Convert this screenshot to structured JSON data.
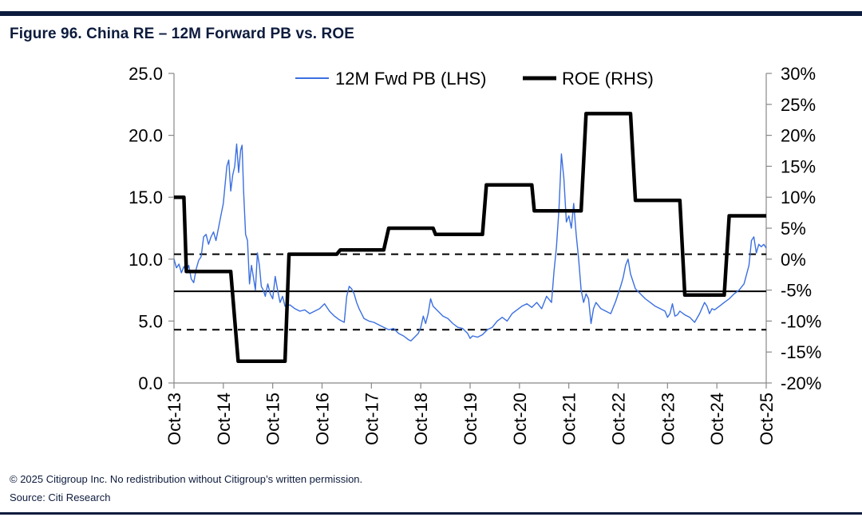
{
  "title": "Figure 96. China RE – 12M Forward PB vs. ROE",
  "footer": {
    "copyright": "© 2025 Citigroup Inc. No redistribution without Citigroup’s written permission.",
    "source": "Source: Citi Research"
  },
  "colors": {
    "navy": "#0d1b3d",
    "pb_line": "#3b6fe0",
    "roe_line": "#000000"
  },
  "chart_data": {
    "type": "line",
    "x_labels": [
      "Oct-13",
      "Oct-14",
      "Oct-15",
      "Oct-16",
      "Oct-17",
      "Oct-18",
      "Oct-19",
      "Oct-20",
      "Oct-21",
      "Oct-22",
      "Oct-23",
      "Oct-24",
      "Oct-25"
    ],
    "x_range": [
      2013.75,
      2025.75
    ],
    "left_axis": {
      "ticks": [
        "0.0",
        "5.0",
        "10.0",
        "15.0",
        "20.0",
        "25.0"
      ],
      "ylim": [
        0,
        25
      ]
    },
    "right_axis": {
      "ticks": [
        "-20%",
        "-15%",
        "-10%",
        "-5%",
        "0%",
        "5%",
        "10%",
        "15%",
        "20%",
        "25%",
        "30%"
      ],
      "ylim": [
        -20,
        30
      ]
    },
    "legend": {
      "position": "top",
      "pb_label": "12M Fwd PB  (LHS)",
      "roe_label": "ROE  (RHS)"
    },
    "series": [
      {
        "name": "12M Fwd PB  (LHS)",
        "axis": "left",
        "color": "#3b6fe0",
        "points": [
          [
            2013.75,
            10.0
          ],
          [
            2013.8,
            9.3
          ],
          [
            2013.85,
            9.6
          ],
          [
            2013.9,
            8.9
          ],
          [
            2013.95,
            9.4
          ],
          [
            2014.0,
            9.0
          ],
          [
            2014.05,
            9.5
          ],
          [
            2014.1,
            8.4
          ],
          [
            2014.15,
            8.1
          ],
          [
            2014.2,
            9.2
          ],
          [
            2014.25,
            9.9
          ],
          [
            2014.3,
            10.2
          ],
          [
            2014.35,
            11.8
          ],
          [
            2014.4,
            12.0
          ],
          [
            2014.45,
            11.2
          ],
          [
            2014.5,
            11.8
          ],
          [
            2014.55,
            12.2
          ],
          [
            2014.6,
            11.5
          ],
          [
            2014.65,
            12.5
          ],
          [
            2014.7,
            13.5
          ],
          [
            2014.75,
            14.5
          ],
          [
            2014.78,
            15.8
          ],
          [
            2014.82,
            17.5
          ],
          [
            2014.86,
            18.0
          ],
          [
            2014.9,
            15.5
          ],
          [
            2014.94,
            16.8
          ],
          [
            2014.98,
            17.5
          ],
          [
            2015.02,
            19.3
          ],
          [
            2015.06,
            17.0
          ],
          [
            2015.1,
            18.8
          ],
          [
            2015.13,
            19.2
          ],
          [
            2015.16,
            15.5
          ],
          [
            2015.2,
            12.0
          ],
          [
            2015.24,
            11.5
          ],
          [
            2015.28,
            8.0
          ],
          [
            2015.32,
            9.5
          ],
          [
            2015.36,
            8.5
          ],
          [
            2015.4,
            7.5
          ],
          [
            2015.44,
            10.5
          ],
          [
            2015.48,
            9.5
          ],
          [
            2015.52,
            7.8
          ],
          [
            2015.56,
            7.5
          ],
          [
            2015.6,
            7.0
          ],
          [
            2015.65,
            8.0
          ],
          [
            2015.7,
            7.2
          ],
          [
            2015.75,
            6.8
          ],
          [
            2015.8,
            8.6
          ],
          [
            2015.85,
            7.5
          ],
          [
            2015.9,
            6.5
          ],
          [
            2015.95,
            7.0
          ],
          [
            2016.0,
            6.2
          ],
          [
            2016.1,
            6.3
          ],
          [
            2016.2,
            6.0
          ],
          [
            2016.3,
            5.8
          ],
          [
            2016.4,
            5.9
          ],
          [
            2016.5,
            5.6
          ],
          [
            2016.6,
            5.8
          ],
          [
            2016.7,
            6.0
          ],
          [
            2016.8,
            6.4
          ],
          [
            2016.9,
            5.8
          ],
          [
            2017.0,
            5.4
          ],
          [
            2017.1,
            5.1
          ],
          [
            2017.2,
            4.9
          ],
          [
            2017.25,
            7.0
          ],
          [
            2017.3,
            7.8
          ],
          [
            2017.35,
            7.6
          ],
          [
            2017.4,
            7.2
          ],
          [
            2017.45,
            6.5
          ],
          [
            2017.5,
            6.0
          ],
          [
            2017.55,
            5.6
          ],
          [
            2017.6,
            5.2
          ],
          [
            2017.7,
            5.0
          ],
          [
            2017.8,
            4.9
          ],
          [
            2017.9,
            4.7
          ],
          [
            2018.0,
            4.5
          ],
          [
            2018.1,
            4.3
          ],
          [
            2018.2,
            4.4
          ],
          [
            2018.3,
            4.0
          ],
          [
            2018.4,
            3.8
          ],
          [
            2018.5,
            3.5
          ],
          [
            2018.55,
            3.4
          ],
          [
            2018.6,
            3.6
          ],
          [
            2018.7,
            4.0
          ],
          [
            2018.75,
            4.5
          ],
          [
            2018.8,
            5.4
          ],
          [
            2018.85,
            4.8
          ],
          [
            2018.9,
            5.6
          ],
          [
            2018.95,
            6.8
          ],
          [
            2019.0,
            6.2
          ],
          [
            2019.1,
            5.8
          ],
          [
            2019.2,
            5.4
          ],
          [
            2019.3,
            5.2
          ],
          [
            2019.4,
            4.8
          ],
          [
            2019.5,
            4.5
          ],
          [
            2019.6,
            4.4
          ],
          [
            2019.7,
            4.0
          ],
          [
            2019.75,
            3.6
          ],
          [
            2019.8,
            3.8
          ],
          [
            2019.9,
            3.7
          ],
          [
            2020.0,
            3.9
          ],
          [
            2020.1,
            4.3
          ],
          [
            2020.2,
            4.5
          ],
          [
            2020.3,
            5.0
          ],
          [
            2020.4,
            5.3
          ],
          [
            2020.5,
            5.0
          ],
          [
            2020.6,
            5.6
          ],
          [
            2020.7,
            5.9
          ],
          [
            2020.8,
            6.2
          ],
          [
            2020.9,
            6.4
          ],
          [
            2021.0,
            6.1
          ],
          [
            2021.1,
            6.5
          ],
          [
            2021.2,
            6.0
          ],
          [
            2021.3,
            7.0
          ],
          [
            2021.4,
            6.5
          ],
          [
            2021.45,
            9.0
          ],
          [
            2021.5,
            11.0
          ],
          [
            2021.55,
            14.0
          ],
          [
            2021.6,
            18.5
          ],
          [
            2021.65,
            16.5
          ],
          [
            2021.7,
            13.0
          ],
          [
            2021.75,
            13.5
          ],
          [
            2021.8,
            12.5
          ],
          [
            2021.85,
            14.5
          ],
          [
            2021.9,
            12.0
          ],
          [
            2021.95,
            10.0
          ],
          [
            2022.0,
            7.5
          ],
          [
            2022.05,
            6.5
          ],
          [
            2022.1,
            7.2
          ],
          [
            2022.15,
            6.8
          ],
          [
            2022.2,
            4.8
          ],
          [
            2022.25,
            6.0
          ],
          [
            2022.3,
            6.5
          ],
          [
            2022.4,
            6.0
          ],
          [
            2022.5,
            5.8
          ],
          [
            2022.6,
            5.6
          ],
          [
            2022.7,
            6.6
          ],
          [
            2022.8,
            7.8
          ],
          [
            2022.85,
            8.5
          ],
          [
            2022.9,
            9.5
          ],
          [
            2022.95,
            10.0
          ],
          [
            2023.0,
            8.8
          ],
          [
            2023.1,
            7.6
          ],
          [
            2023.2,
            7.2
          ],
          [
            2023.3,
            6.8
          ],
          [
            2023.4,
            6.5
          ],
          [
            2023.5,
            6.2
          ],
          [
            2023.6,
            6.0
          ],
          [
            2023.7,
            5.8
          ],
          [
            2023.75,
            5.3
          ],
          [
            2023.8,
            5.6
          ],
          [
            2023.85,
            6.4
          ],
          [
            2023.9,
            5.4
          ],
          [
            2023.95,
            5.5
          ],
          [
            2024.0,
            5.8
          ],
          [
            2024.1,
            5.5
          ],
          [
            2024.2,
            5.3
          ],
          [
            2024.3,
            4.9
          ],
          [
            2024.4,
            5.6
          ],
          [
            2024.5,
            6.5
          ],
          [
            2024.55,
            6.2
          ],
          [
            2024.6,
            5.6
          ],
          [
            2024.65,
            6.0
          ],
          [
            2024.7,
            5.9
          ],
          [
            2024.8,
            6.2
          ],
          [
            2024.9,
            6.5
          ],
          [
            2025.0,
            6.8
          ],
          [
            2025.1,
            7.2
          ],
          [
            2025.2,
            7.5
          ],
          [
            2025.3,
            8.0
          ],
          [
            2025.4,
            9.5
          ],
          [
            2025.45,
            11.5
          ],
          [
            2025.5,
            11.8
          ],
          [
            2025.55,
            10.5
          ],
          [
            2025.6,
            11.2
          ],
          [
            2025.65,
            11.0
          ],
          [
            2025.7,
            11.2
          ],
          [
            2025.75,
            10.9
          ]
        ]
      },
      {
        "name": "ROE  (RHS)",
        "axis": "right",
        "color": "#000000",
        "points": [
          [
            2013.75,
            10.0
          ],
          [
            2013.95,
            10.0
          ],
          [
            2014.0,
            -2.0
          ],
          [
            2014.9,
            -2.0
          ],
          [
            2015.05,
            -16.5
          ],
          [
            2016.0,
            -16.5
          ],
          [
            2016.08,
            0.8
          ],
          [
            2017.05,
            0.8
          ],
          [
            2017.12,
            1.5
          ],
          [
            2018.0,
            1.5
          ],
          [
            2018.1,
            5.0
          ],
          [
            2019.0,
            5.0
          ],
          [
            2019.05,
            4.0
          ],
          [
            2020.0,
            4.0
          ],
          [
            2020.08,
            12.0
          ],
          [
            2021.0,
            12.0
          ],
          [
            2021.05,
            7.8
          ],
          [
            2022.0,
            7.8
          ],
          [
            2022.1,
            23.5
          ],
          [
            2023.0,
            23.5
          ],
          [
            2023.1,
            9.5
          ],
          [
            2024.0,
            9.5
          ],
          [
            2024.1,
            -5.8
          ],
          [
            2024.9,
            -5.8
          ],
          [
            2025.0,
            7.0
          ],
          [
            2025.75,
            7.0
          ]
        ]
      }
    ],
    "reference_lines": [
      {
        "axis": "left",
        "value": 7.4,
        "style": "solid"
      },
      {
        "axis": "left",
        "value": 10.4,
        "style": "dashed"
      },
      {
        "axis": "left",
        "value": 4.3,
        "style": "dashed"
      }
    ]
  }
}
